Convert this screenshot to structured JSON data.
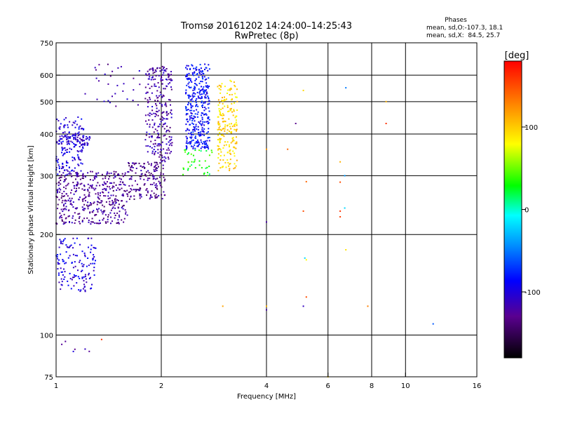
{
  "chart_data": {
    "type": "scatter",
    "title": "Tromsø 20161202 14:24:00–14:25:43",
    "subtitle": "RwPretec (8p)",
    "xlabel": "Frequency [MHz]",
    "ylabel": "Stationary phase Virtual Height [km]",
    "x_scale": "log",
    "y_scale": "log",
    "xlim": [
      1,
      16
    ],
    "ylim": [
      75,
      750
    ],
    "x_ticks": [
      1,
      2,
      4,
      6,
      8,
      10,
      16
    ],
    "y_ticks": [
      75,
      100,
      200,
      300,
      400,
      500,
      600,
      750
    ],
    "grid": true,
    "stats": {
      "heading": "Phases",
      "line1": "mean, sd,O:-107.3, 18.1",
      "line2": "mean, sd,X:  84.5, 25.7"
    },
    "colorbar": {
      "label": "[deg]",
      "min": -180,
      "max": 180,
      "ticks": [
        100,
        0,
        -100
      ],
      "tick_labels": [
        "100",
        "0",
        "-100"
      ]
    },
    "clusters": [
      {
        "f": [
          1.0,
          1.2
        ],
        "h": [
          300,
          450
        ],
        "phase": -100,
        "n": 160
      },
      {
        "f": [
          1.0,
          1.25
        ],
        "h": [
          370,
          395
        ],
        "phase": -110,
        "n": 60
      },
      {
        "f": [
          1.0,
          1.6
        ],
        "h": [
          215,
          310
        ],
        "phase": -125,
        "n": 420
      },
      {
        "f": [
          1.6,
          2.05
        ],
        "h": [
          255,
          330
        ],
        "phase": -130,
        "n": 160
      },
      {
        "f": [
          1.8,
          2.15
        ],
        "h": [
          330,
          640
        ],
        "phase": -120,
        "n": 260
      },
      {
        "f": [
          1.0,
          1.3
        ],
        "h": [
          135,
          195
        ],
        "phase": -100,
        "n": 140
      },
      {
        "f": [
          1.2,
          1.75
        ],
        "h": [
          480,
          650
        ],
        "phase": -120,
        "n": 30
      },
      {
        "f": [
          2.35,
          2.75
        ],
        "h": [
          360,
          650
        ],
        "phase": -85,
        "n": 360
      },
      {
        "f": [
          2.3,
          2.8
        ],
        "h": [
          300,
          360
        ],
        "phase": 30,
        "n": 40
      },
      {
        "f": [
          2.9,
          3.3
        ],
        "h": [
          310,
          580
        ],
        "phase": 95,
        "n": 200
      },
      {
        "f": [
          1.0,
          1.25
        ],
        "h": [
          89,
          96
        ],
        "phase": -120,
        "n": 6
      }
    ],
    "points": [
      {
        "f": 1.35,
        "h": 97,
        "phase": 160
      },
      {
        "f": 3.0,
        "h": 122,
        "phase": 115
      },
      {
        "f": 4.0,
        "h": 122,
        "phase": 110
      },
      {
        "f": 4.0,
        "h": 119,
        "phase": -120
      },
      {
        "f": 4.0,
        "h": 218,
        "phase": -120
      },
      {
        "f": 4.0,
        "h": 360,
        "phase": 120
      },
      {
        "f": 4.6,
        "h": 360,
        "phase": 140
      },
      {
        "f": 4.85,
        "h": 430,
        "phase": -130
      },
      {
        "f": 5.1,
        "h": 540,
        "phase": 95
      },
      {
        "f": 5.1,
        "h": 235,
        "phase": 150
      },
      {
        "f": 5.2,
        "h": 288,
        "phase": 140
      },
      {
        "f": 5.15,
        "h": 170,
        "phase": -20
      },
      {
        "f": 5.2,
        "h": 168,
        "phase": 80
      },
      {
        "f": 5.2,
        "h": 130,
        "phase": 150
      },
      {
        "f": 5.1,
        "h": 122,
        "phase": -110
      },
      {
        "f": 6.0,
        "h": 75,
        "phase": 95
      },
      {
        "f": 6.5,
        "h": 330,
        "phase": 110
      },
      {
        "f": 6.5,
        "h": 287,
        "phase": 150
      },
      {
        "f": 6.5,
        "h": 235,
        "phase": 160
      },
      {
        "f": 6.5,
        "h": 226,
        "phase": 155
      },
      {
        "f": 6.7,
        "h": 300,
        "phase": -40
      },
      {
        "f": 6.7,
        "h": 240,
        "phase": -20
      },
      {
        "f": 6.75,
        "h": 180,
        "phase": 90
      },
      {
        "f": 6.75,
        "h": 550,
        "phase": -50
      },
      {
        "f": 7.8,
        "h": 122,
        "phase": 130
      },
      {
        "f": 8.8,
        "h": 500,
        "phase": 110
      },
      {
        "f": 8.8,
        "h": 430,
        "phase": 160
      },
      {
        "f": 12.0,
        "h": 108,
        "phase": -60
      }
    ]
  }
}
